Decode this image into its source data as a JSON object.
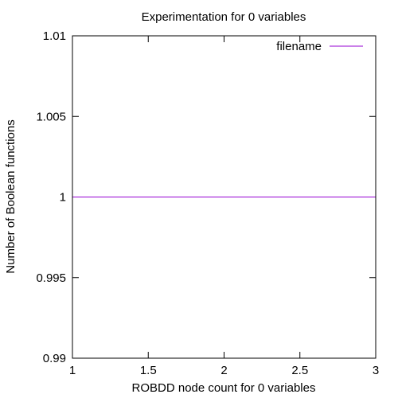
{
  "chart_data": {
    "type": "line",
    "title": "Experimentation for 0 variables",
    "xlabel": "ROBDD node count for 0 variables",
    "ylabel": "Number of Boolean functions",
    "xlim": [
      1,
      3
    ],
    "ylim": [
      0.99,
      1.01
    ],
    "x_ticks": [
      1,
      1.5,
      2,
      2.5,
      3
    ],
    "x_tick_labels": [
      "1",
      "1.5",
      "2",
      "2.5",
      "3"
    ],
    "y_ticks": [
      0.99,
      0.995,
      1,
      1.005,
      1.01
    ],
    "y_tick_labels": [
      "0.99",
      "0.995",
      "1",
      "1.005",
      "1.01"
    ],
    "grid": false,
    "legend_position": "top-right",
    "series": [
      {
        "name": "filename",
        "color": "#9400D3",
        "x": [
          1,
          3
        ],
        "y": [
          1,
          1
        ]
      }
    ]
  }
}
